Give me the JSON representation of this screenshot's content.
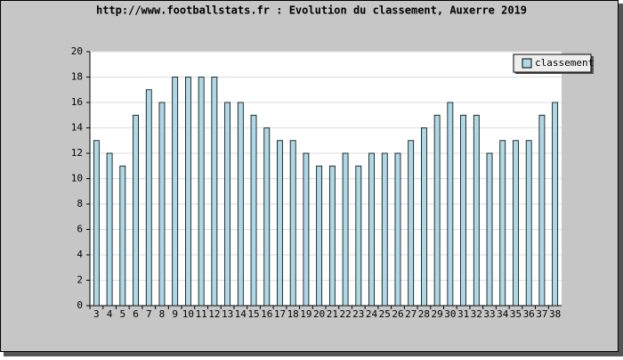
{
  "chart_data": {
    "type": "bar",
    "title": "http://www.footballstats.fr : Evolution du classement, Auxerre 2019",
    "categories": [
      "3",
      "4",
      "5",
      "6",
      "7",
      "8",
      "9",
      "10",
      "11",
      "12",
      "13",
      "14",
      "15",
      "16",
      "17",
      "18",
      "19",
      "20",
      "21",
      "22",
      "23",
      "24",
      "25",
      "26",
      "27",
      "28",
      "29",
      "30",
      "31",
      "32",
      "33",
      "34",
      "35",
      "36",
      "37",
      "38"
    ],
    "series": [
      {
        "name": "classement",
        "color": "#add8e6",
        "values": [
          13,
          12,
          11,
          15,
          17,
          16,
          18,
          18,
          18,
          18,
          16,
          16,
          15,
          14,
          13,
          13,
          12,
          11,
          11,
          12,
          11,
          12,
          12,
          12,
          13,
          14,
          15,
          16,
          15,
          15,
          12,
          13,
          13,
          13,
          15,
          16
        ]
      }
    ],
    "ylim": [
      0,
      20
    ],
    "yticks": [
      0,
      2,
      4,
      6,
      8,
      10,
      12,
      14,
      16,
      18,
      20
    ],
    "grid": true,
    "legend": "top-right"
  }
}
